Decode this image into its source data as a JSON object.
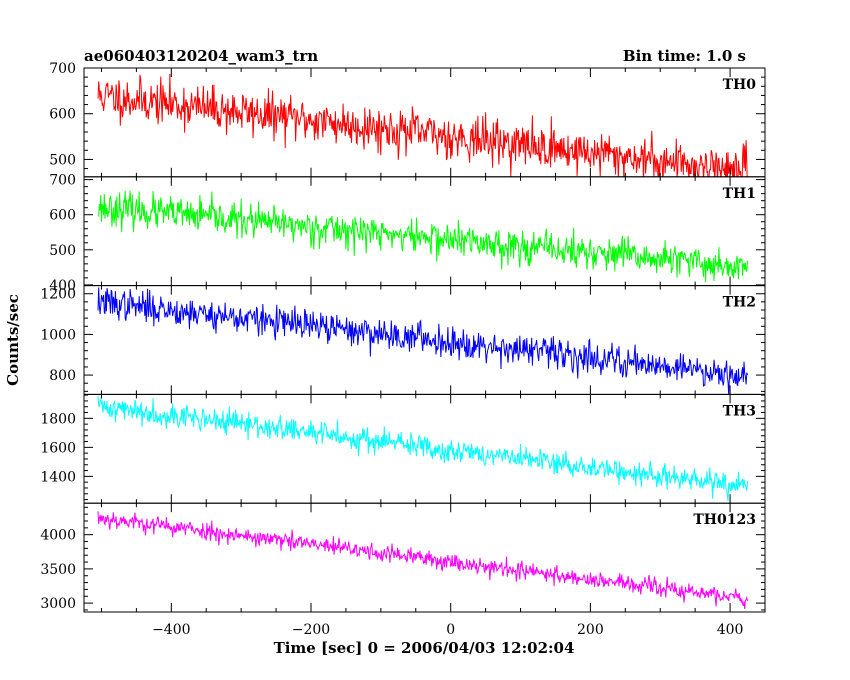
{
  "title_left": "ae060403120204_wam3_trn",
  "title_right": "Bin time: 1.0 s",
  "chart_data": {
    "type": "line",
    "title": "ae060403120204_wam3_trn",
    "subtitle": "Bin time: 1.0 s",
    "xlabel": "Time [sec] 0 = 2006/04/03 12:02:04",
    "ylabel": "Counts/sec",
    "xlim": [
      -525,
      450
    ],
    "x_range": [
      -505,
      425
    ],
    "bin_time": 1.0,
    "x_ticks": [
      -400,
      -200,
      0,
      200,
      400
    ],
    "x_tick_labels": [
      "−400",
      "−200",
      "0",
      "200",
      "400"
    ],
    "grid": false,
    "series": [
      {
        "name": "TH0",
        "color": "#ff0000",
        "ylim": [
          462,
          700
        ],
        "yticks": [
          500,
          600,
          700
        ],
        "start": 640,
        "end": 475,
        "noise": 24,
        "seed": 11
      },
      {
        "name": "TH1",
        "color": "#00ff00",
        "ylim": [
          398,
          708
        ],
        "yticks": [
          400,
          500,
          600,
          700
        ],
        "start": 622,
        "end": 450,
        "noise": 24,
        "seed": 23
      },
      {
        "name": "TH2",
        "color": "#0000ff",
        "ylim": [
          705,
          1240
        ],
        "yticks": [
          800,
          1000,
          1200
        ],
        "start": 1160,
        "end": 800,
        "noise": 38,
        "seed": 37
      },
      {
        "name": "TH3",
        "color": "#00ffff",
        "ylim": [
          1215,
          1965
        ],
        "yticks": [
          1400,
          1600,
          1800
        ],
        "start": 1885,
        "end": 1325,
        "noise": 42,
        "seed": 41
      },
      {
        "name": "TH0123",
        "color": "#ff00ff",
        "ylim": [
          2870,
          4460
        ],
        "yticks": [
          3000,
          3500,
          4000
        ],
        "start": 4250,
        "end": 3060,
        "noise": 65,
        "seed": 53
      }
    ]
  }
}
